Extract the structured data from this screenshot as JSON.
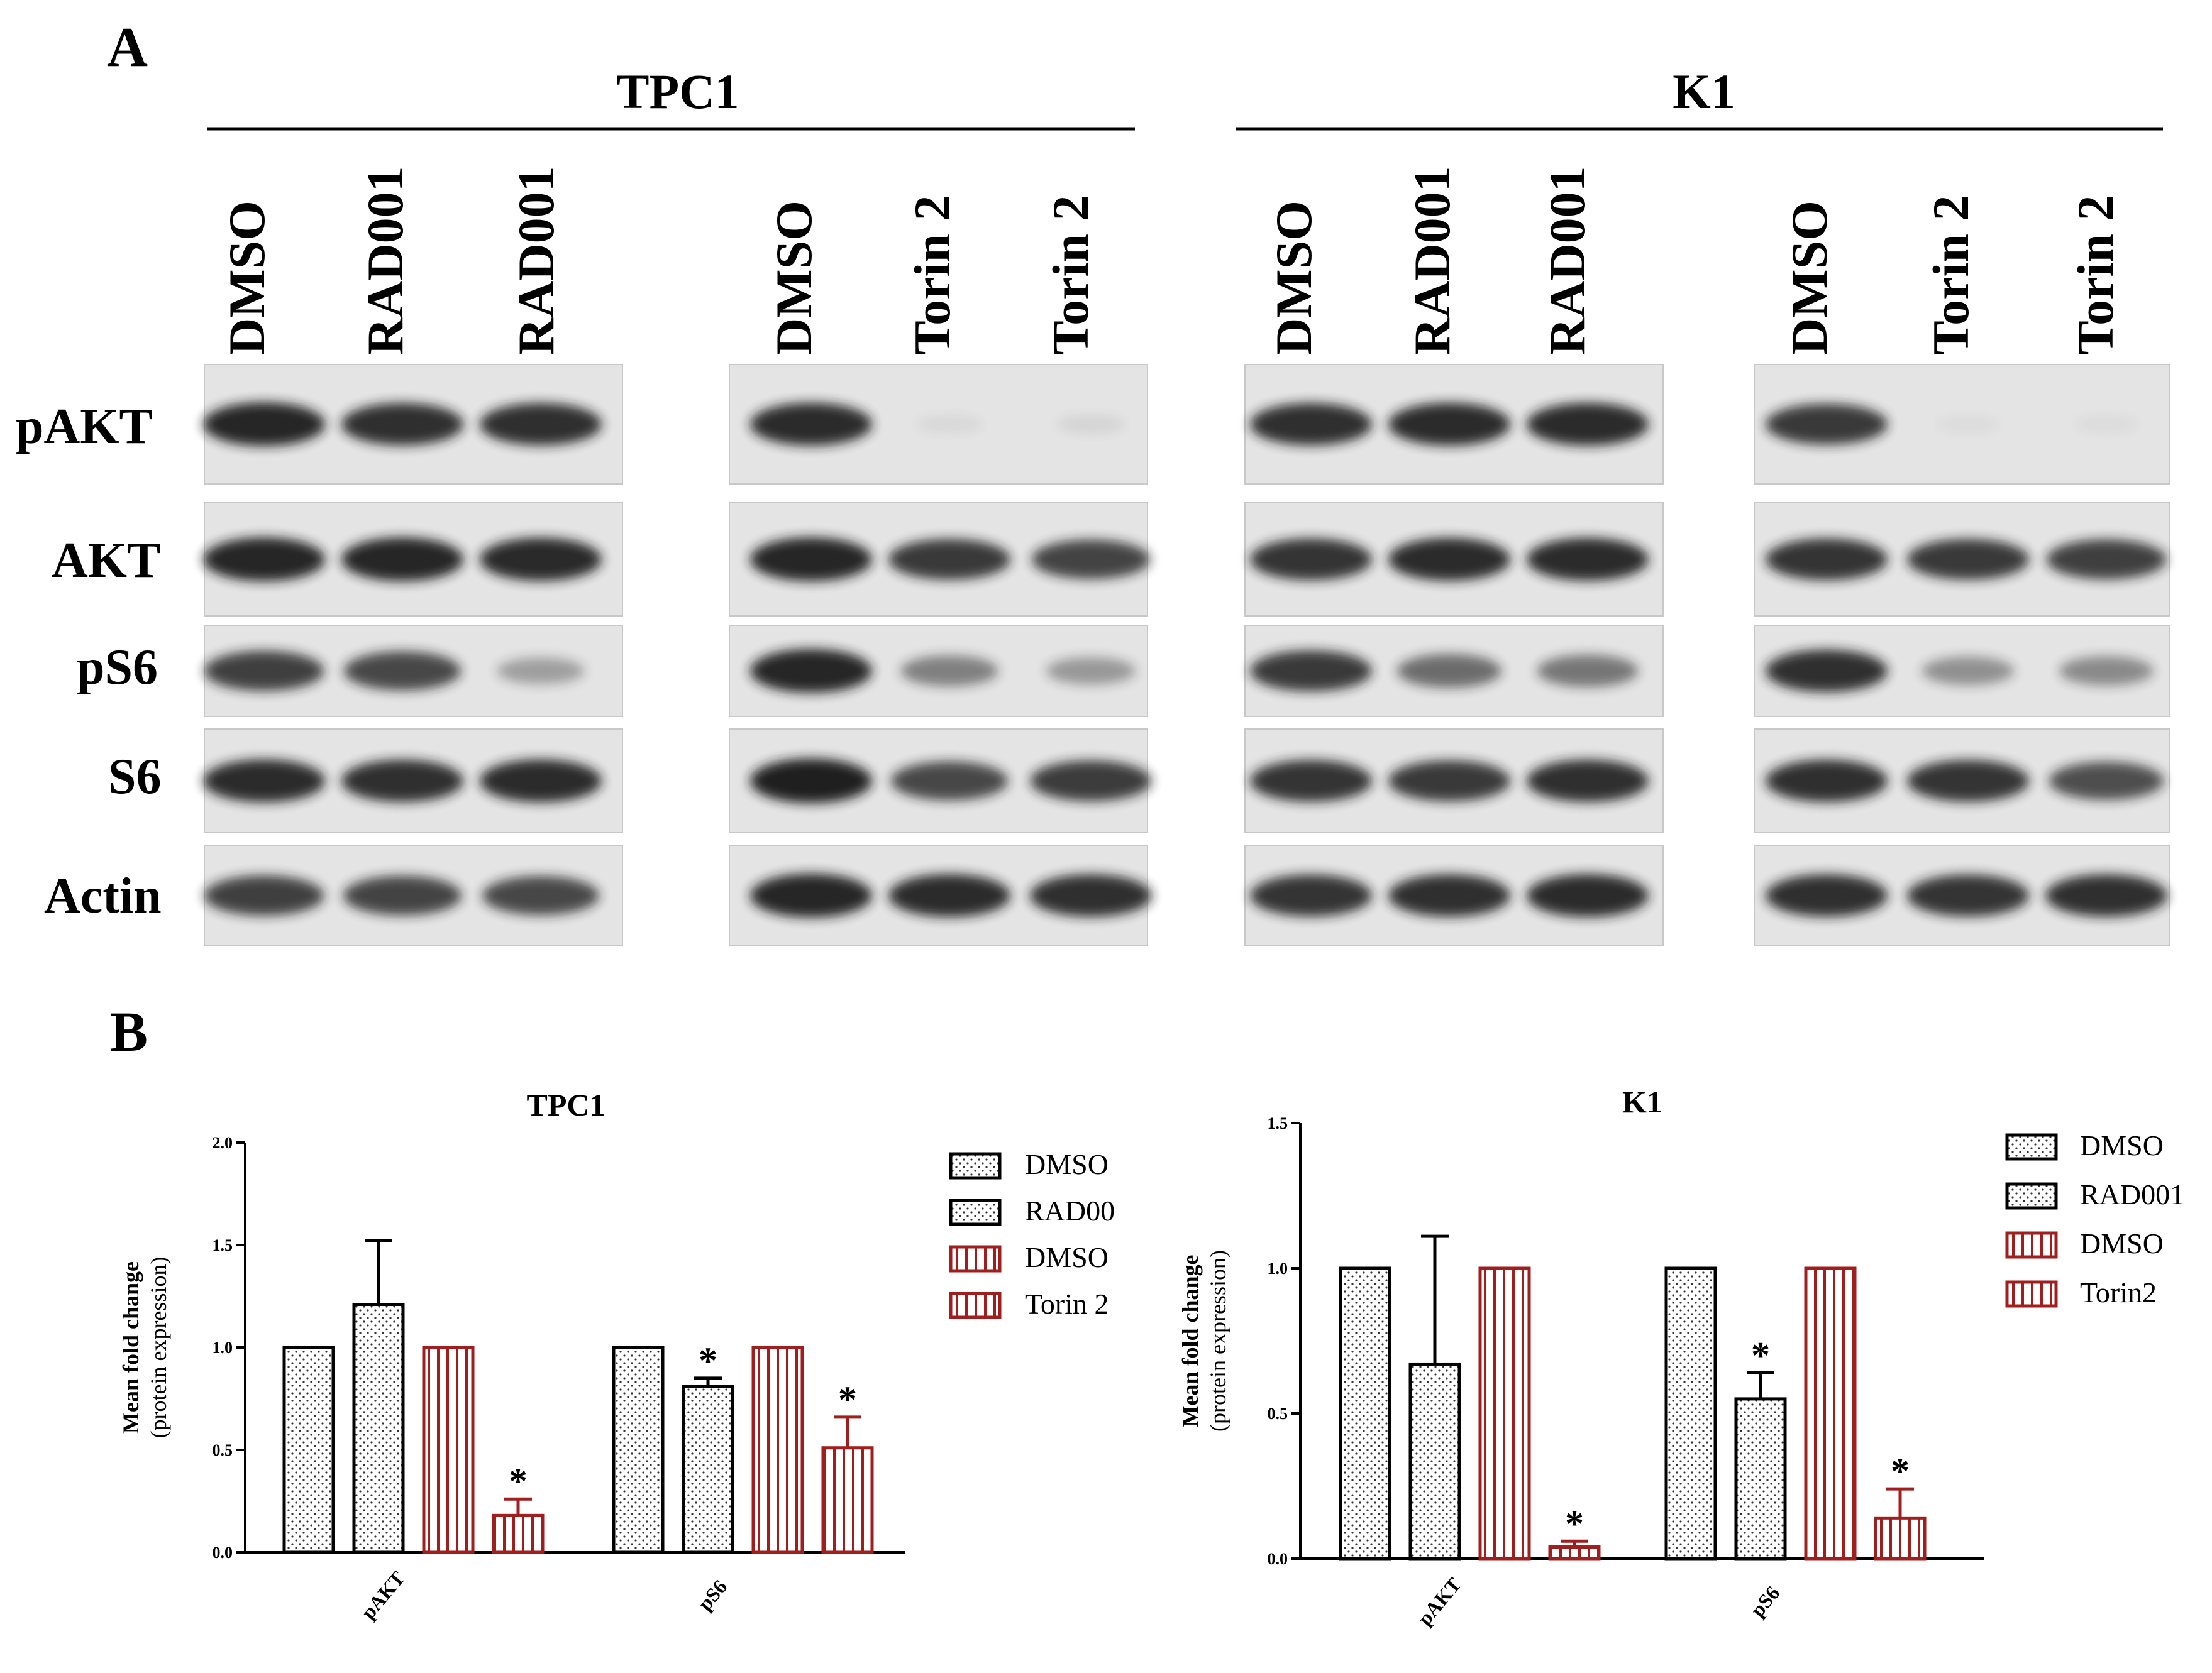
{
  "figure": {
    "panel_a_label": "A",
    "panel_b_label": "B"
  },
  "blot": {
    "groups": [
      {
        "name": "TPC1",
        "lanes": [
          "DMSO",
          "RAD001",
          "RAD001",
          "DMSO",
          "Torin 2",
          "Torin 2"
        ]
      },
      {
        "name": "K1",
        "lanes": [
          "DMSO",
          "RAD001",
          "RAD001",
          "DMSO",
          "Torin 2",
          "Torin 2"
        ]
      }
    ],
    "rows": [
      "pAKT",
      "AKT",
      "pS6",
      "S6",
      "Actin"
    ],
    "band_intensity": [
      [
        [
          0.95,
          0.9,
          0.9
        ],
        [
          0.92,
          0.06,
          0.08
        ],
        [
          0.9,
          0.92,
          0.92
        ],
        [
          0.85,
          0.02,
          0.03
        ]
      ],
      [
        [
          0.95,
          0.95,
          0.93
        ],
        [
          0.95,
          0.85,
          0.8
        ],
        [
          0.88,
          0.92,
          0.92
        ],
        [
          0.88,
          0.85,
          0.82
        ]
      ],
      [
        [
          0.82,
          0.78,
          0.35
        ],
        [
          0.95,
          0.5,
          0.38
        ],
        [
          0.85,
          0.6,
          0.55
        ],
        [
          0.9,
          0.42,
          0.45
        ]
      ],
      [
        [
          0.92,
          0.9,
          0.92
        ],
        [
          0.98,
          0.78,
          0.84
        ],
        [
          0.88,
          0.85,
          0.9
        ],
        [
          0.9,
          0.88,
          0.75
        ]
      ],
      [
        [
          0.82,
          0.8,
          0.78
        ],
        [
          0.95,
          0.92,
          0.9
        ],
        [
          0.88,
          0.9,
          0.92
        ],
        [
          0.9,
          0.88,
          0.9
        ]
      ]
    ]
  },
  "colors": {
    "dmso_rad": "#000000",
    "dmso_torin": "#a01e1e",
    "band": "#1f1f1f",
    "membrane": "#e4e4e4"
  },
  "chart_data": [
    {
      "type": "bar",
      "title": "TPC1",
      "ylabel": "Mean fold change",
      "ylabel_sub": "(protein expression)",
      "ylim": [
        0,
        2.0
      ],
      "yticks": [
        "0.0",
        "0.5",
        "1.0",
        "1.5",
        "2.0"
      ],
      "categories": [
        "pAKT",
        "pS6"
      ],
      "series": [
        {
          "name": "DMSO",
          "values": [
            1.0,
            1.0
          ],
          "errors": [
            0,
            0
          ],
          "pattern": "dots",
          "color": "#000000",
          "sig": [
            false,
            false
          ]
        },
        {
          "name": "RAD00",
          "values": [
            1.21,
            0.81
          ],
          "errors": [
            0.31,
            0.04
          ],
          "pattern": "dots",
          "color": "#000000",
          "sig": [
            false,
            true
          ]
        },
        {
          "name": "DMSO",
          "values": [
            1.0,
            1.0
          ],
          "errors": [
            0,
            0
          ],
          "pattern": "stripes",
          "color": "#a01e1e",
          "sig": [
            false,
            false
          ]
        },
        {
          "name": "Torin 2",
          "values": [
            0.18,
            0.51
          ],
          "errors": [
            0.08,
            0.15
          ],
          "pattern": "stripes",
          "color": "#a01e1e",
          "sig": [
            true,
            true
          ]
        }
      ],
      "sig_label": "*"
    },
    {
      "type": "bar",
      "title": "K1",
      "ylabel": "Mean fold change",
      "ylabel_sub": "(protein expression)",
      "ylim": [
        0,
        1.5
      ],
      "yticks": [
        "0.0",
        "0.5",
        "1.0",
        "1.5"
      ],
      "categories": [
        "pAKT",
        "pS6"
      ],
      "series": [
        {
          "name": "DMSO",
          "values": [
            1.0,
            1.0
          ],
          "errors": [
            0,
            0
          ],
          "pattern": "dots",
          "color": "#000000",
          "sig": [
            false,
            false
          ]
        },
        {
          "name": "RAD001",
          "values": [
            0.67,
            0.55
          ],
          "errors": [
            0.44,
            0.09
          ],
          "pattern": "dots",
          "color": "#000000",
          "sig": [
            false,
            true
          ]
        },
        {
          "name": "DMSO",
          "values": [
            1.0,
            1.0
          ],
          "errors": [
            0,
            0
          ],
          "pattern": "stripes",
          "color": "#a01e1e",
          "sig": [
            false,
            false
          ]
        },
        {
          "name": "Torin2",
          "values": [
            0.04,
            0.14
          ],
          "errors": [
            0.02,
            0.1
          ],
          "pattern": "stripes",
          "color": "#a01e1e",
          "sig": [
            true,
            true
          ]
        }
      ],
      "sig_label": "*"
    }
  ]
}
